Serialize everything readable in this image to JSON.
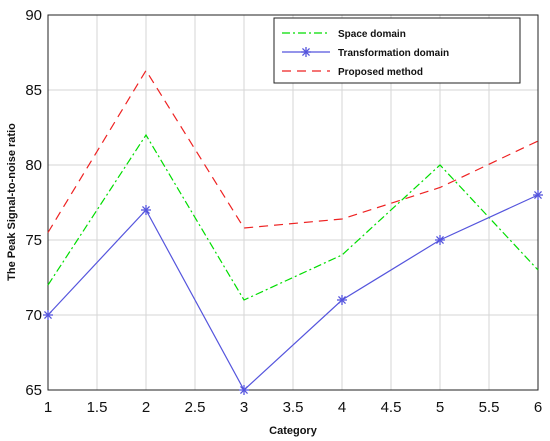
{
  "chart_data": {
    "type": "line",
    "title": "",
    "xlabel": "Category",
    "ylabel": "The Peak Signal-to-noise ratio",
    "xlim": [
      1,
      6
    ],
    "ylim": [
      65,
      90
    ],
    "xticks": [
      1,
      1.5,
      2,
      2.5,
      3,
      3.5,
      4,
      4.5,
      5,
      5.5,
      6
    ],
    "xtick_labels": [
      "1",
      "1.5",
      "2",
      "2.5",
      "3",
      "3.5",
      "4",
      "4.5",
      "5",
      "5.5",
      "6"
    ],
    "yticks": [
      65,
      70,
      75,
      80,
      85,
      90
    ],
    "ytick_labels": [
      "65",
      "70",
      "75",
      "80",
      "85",
      "90"
    ],
    "grid": true,
    "legend_position": "top-right",
    "series": [
      {
        "name": "Space domain",
        "color": "#00dd00",
        "style": "dash-dot",
        "marker": "none",
        "x": [
          1,
          2,
          3,
          4,
          5,
          6
        ],
        "y": [
          72,
          82,
          71,
          74,
          80,
          73
        ]
      },
      {
        "name": "Transformation domain",
        "color": "#5555dd",
        "style": "solid",
        "marker": "asterisk",
        "x": [
          1,
          2,
          3,
          4,
          5,
          6
        ],
        "y": [
          70,
          77,
          65,
          71,
          75,
          78
        ]
      },
      {
        "name": "Proposed method",
        "color": "#ee2222",
        "style": "dashed",
        "marker": "none",
        "x": [
          1,
          2,
          3,
          4,
          5,
          6
        ],
        "y": [
          75.5,
          86.3,
          75.8,
          76.4,
          78.5,
          81.6
        ]
      }
    ]
  }
}
